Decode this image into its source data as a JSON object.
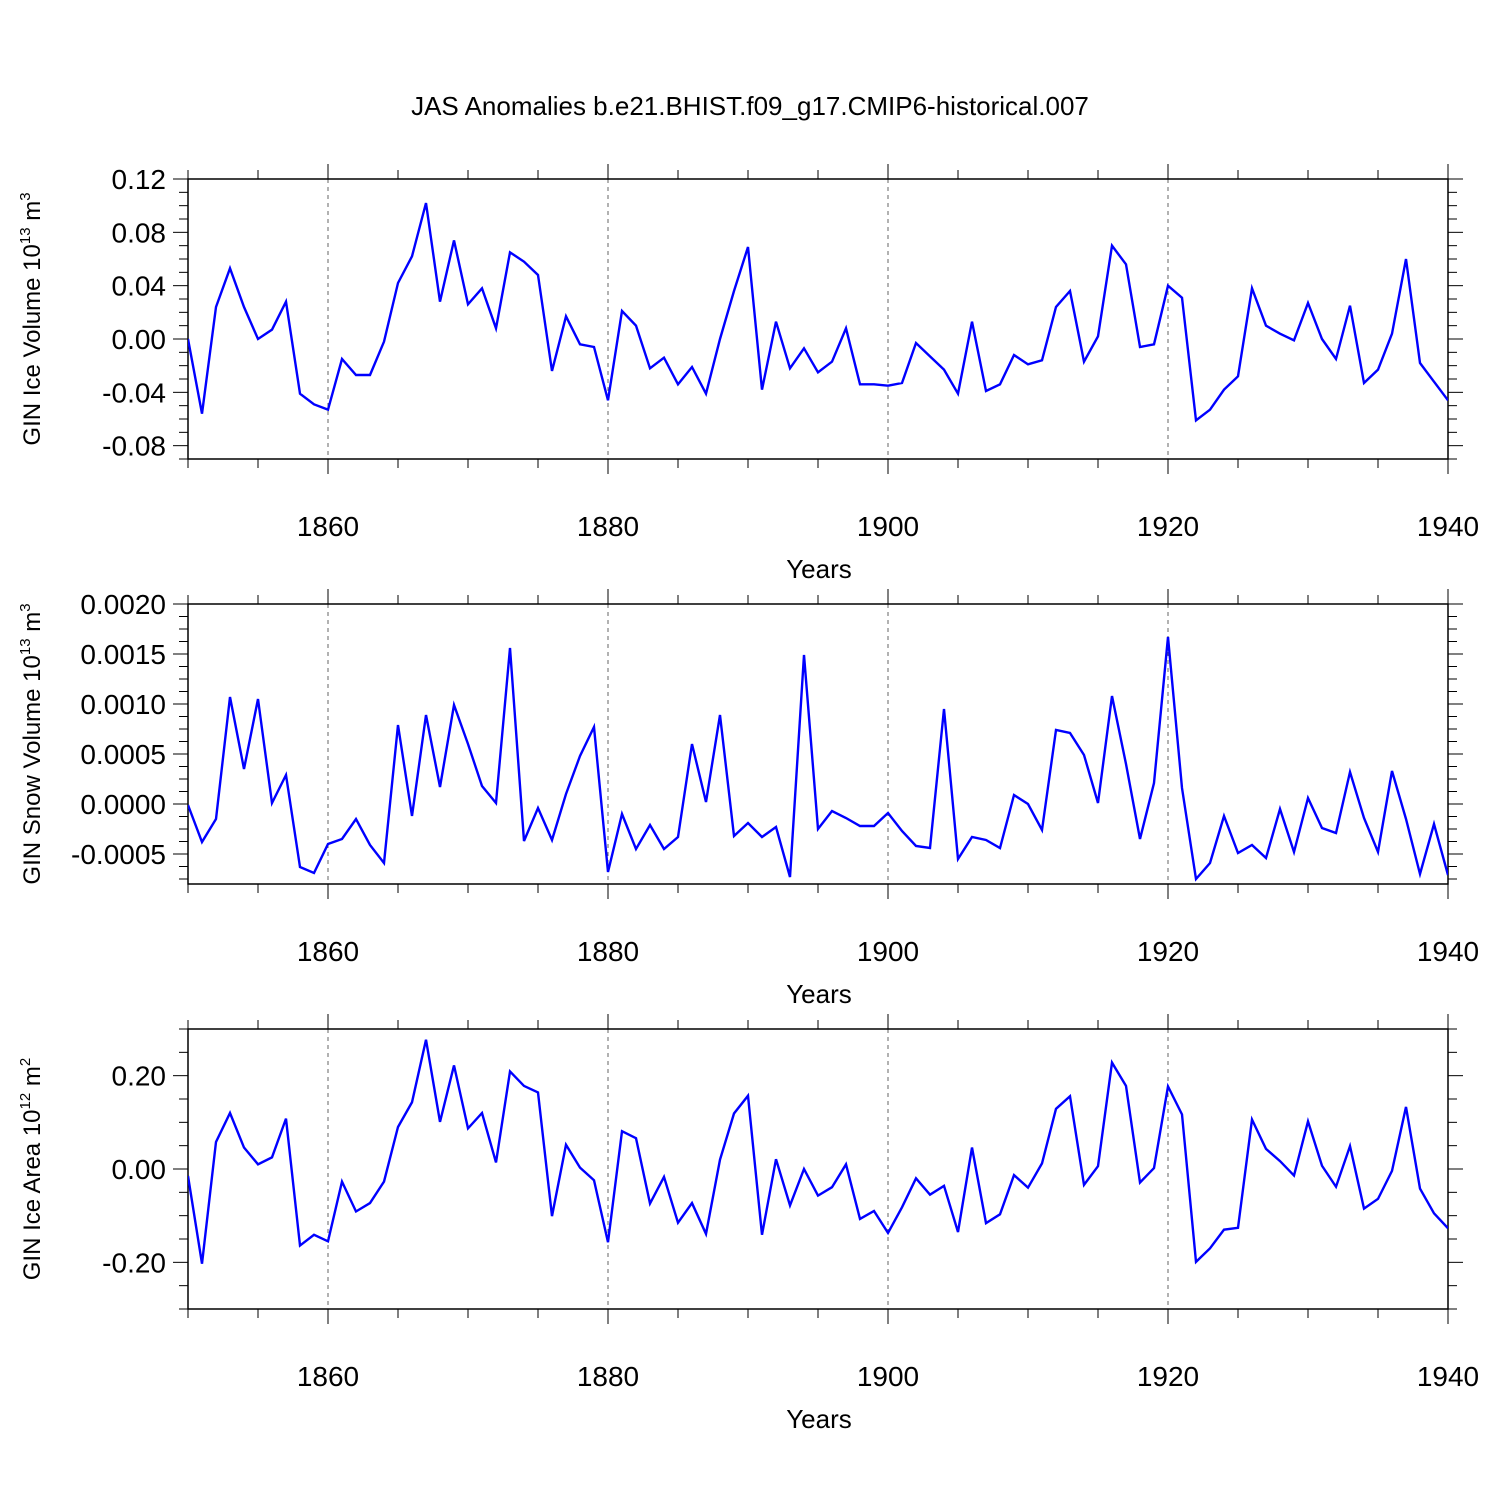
{
  "chart_data": {
    "type": "line",
    "title": "JAS Anomalies b.e21.BHIST.f09_g17.CMIP6-historical.007",
    "line_color": "#0000ff",
    "years_start": 1850,
    "years_end": 1940,
    "panels": [
      {
        "id": "ice-volume",
        "ylabel_main": "GIN Ice Volume 10",
        "ylabel_exp": "13",
        "ylabel_unit": " m",
        "ylabel_unit_exp": "3",
        "xlabel": "Years",
        "ylim": [
          -0.09,
          0.12
        ],
        "yticks": [
          0.12,
          0.08,
          0.04,
          0.0,
          -0.04,
          -0.08
        ],
        "yticklabels": [
          "0.12",
          "0.08",
          "0.04",
          "0.00",
          "-0.04",
          "-0.08"
        ],
        "xticks": [
          1860,
          1880,
          1900,
          1920,
          1940
        ],
        "xticklabels": [
          "1860",
          "1880",
          "1900",
          "1920",
          "1940"
        ],
        "values": [
          0.0,
          -0.056,
          0.024,
          0.053,
          0.024,
          0.0,
          0.007,
          0.028,
          -0.041,
          -0.049,
          -0.053,
          -0.015,
          -0.027,
          -0.027,
          -0.002,
          0.042,
          0.062,
          0.102,
          0.028,
          0.074,
          0.026,
          0.038,
          0.008,
          0.065,
          0.058,
          0.048,
          -0.024,
          0.017,
          -0.004,
          -0.006,
          -0.046,
          0.021,
          0.01,
          -0.022,
          -0.014,
          -0.034,
          -0.021,
          -0.041,
          0.0,
          0.036,
          0.069,
          -0.038,
          0.013,
          -0.022,
          -0.007,
          -0.025,
          -0.017,
          0.008,
          -0.034,
          -0.034,
          -0.035,
          -0.033,
          -0.003,
          -0.013,
          -0.023,
          -0.041,
          0.013,
          -0.039,
          -0.034,
          -0.012,
          -0.019,
          -0.016,
          0.024,
          0.036,
          -0.017,
          0.002,
          0.07,
          0.056,
          -0.006,
          -0.004,
          0.04,
          0.031,
          -0.061,
          -0.053,
          -0.038,
          -0.028,
          0.038,
          0.01,
          0.004,
          -0.001,
          0.027,
          0.0,
          -0.015,
          0.025,
          -0.033,
          -0.023,
          0.004,
          0.06,
          -0.018,
          -0.032,
          -0.046
        ]
      },
      {
        "id": "snow-volume",
        "ylabel_main": "GIN Snow Volume 10",
        "ylabel_exp": "13",
        "ylabel_unit": " m",
        "ylabel_unit_exp": "3",
        "xlabel": "Years",
        "ylim": [
          -0.0008,
          0.002
        ],
        "yticks": [
          0.002,
          0.0015,
          0.001,
          0.0005,
          0.0,
          -0.0005
        ],
        "yticklabels": [
          "0.0020",
          "0.0015",
          "0.0010",
          "0.0005",
          "0.0000",
          "-0.0005"
        ],
        "xticks": [
          1860,
          1880,
          1900,
          1920,
          1940
        ],
        "xticklabels": [
          "1860",
          "1880",
          "1900",
          "1920",
          "1940"
        ],
        "values": [
          -1e-05,
          -0.00038,
          -0.00015,
          0.00107,
          0.00035,
          0.00105,
          1e-05,
          0.00029,
          -0.00063,
          -0.00069,
          -0.0004,
          -0.00035,
          -0.00015,
          -0.00041,
          -0.00059,
          0.00079,
          -0.00012,
          0.00089,
          0.00017,
          0.00099,
          0.0006,
          0.00018,
          1e-05,
          0.00156,
          -0.00037,
          -4e-05,
          -0.00036,
          0.0001,
          0.00048,
          0.00077,
          -0.00068,
          -0.0001,
          -0.00045,
          -0.00021,
          -0.00045,
          -0.00033,
          0.0006,
          2e-05,
          0.00089,
          -0.00032,
          -0.00019,
          -0.00033,
          -0.00023,
          -0.00073,
          0.00149,
          -0.00025,
          -7e-05,
          -0.00014,
          -0.00022,
          -0.00022,
          -9e-05,
          -0.00027,
          -0.00042,
          -0.00044,
          0.00095,
          -0.00055,
          -0.00033,
          -0.00036,
          -0.00044,
          9e-05,
          0.0,
          -0.00026,
          0.00074,
          0.00071,
          0.00049,
          1e-05,
          0.00108,
          0.0004,
          -0.00035,
          0.00021,
          0.00167,
          0.00016,
          -0.00075,
          -0.00059,
          -0.00012,
          -0.00049,
          -0.00041,
          -0.00054,
          -5e-05,
          -0.00048,
          6e-05,
          -0.00024,
          -0.00029,
          0.00032,
          -0.00014,
          -0.00048,
          0.00033,
          -0.00015,
          -0.0007,
          -0.0002,
          -0.00071
        ]
      },
      {
        "id": "ice-area",
        "ylabel_main": "GIN Ice Area 10",
        "ylabel_exp": "12",
        "ylabel_unit": " m",
        "ylabel_unit_exp": "2",
        "xlabel": "Years",
        "ylim": [
          -0.3,
          0.3
        ],
        "yticks": [
          0.2,
          0.0,
          -0.2
        ],
        "yticklabels": [
          "0.20",
          "0.00",
          "-0.20"
        ],
        "xticks": [
          1860,
          1880,
          1900,
          1920,
          1940
        ],
        "xticklabels": [
          "1860",
          "1880",
          "1900",
          "1920",
          "1940"
        ],
        "values": [
          -0.015,
          -0.203,
          0.058,
          0.12,
          0.046,
          0.01,
          0.025,
          0.108,
          -0.164,
          -0.141,
          -0.155,
          -0.027,
          -0.091,
          -0.073,
          -0.027,
          0.09,
          0.143,
          0.277,
          0.101,
          0.222,
          0.087,
          0.12,
          0.014,
          0.209,
          0.178,
          0.164,
          -0.101,
          0.052,
          0.003,
          -0.024,
          -0.157,
          0.081,
          0.066,
          -0.074,
          -0.017,
          -0.115,
          -0.073,
          -0.139,
          0.02,
          0.119,
          0.157,
          -0.141,
          0.021,
          -0.078,
          0.0,
          -0.057,
          -0.039,
          0.01,
          -0.107,
          -0.09,
          -0.137,
          -0.082,
          -0.02,
          -0.055,
          -0.036,
          -0.135,
          0.046,
          -0.116,
          -0.097,
          -0.013,
          -0.04,
          0.012,
          0.129,
          0.156,
          -0.034,
          0.006,
          0.228,
          0.178,
          -0.029,
          0.002,
          0.177,
          0.117,
          -0.199,
          -0.17,
          -0.13,
          -0.126,
          0.106,
          0.043,
          0.017,
          -0.014,
          0.102,
          0.007,
          -0.038,
          0.049,
          -0.085,
          -0.064,
          -0.004,
          0.133,
          -0.042,
          -0.095,
          -0.127
        ]
      }
    ]
  }
}
